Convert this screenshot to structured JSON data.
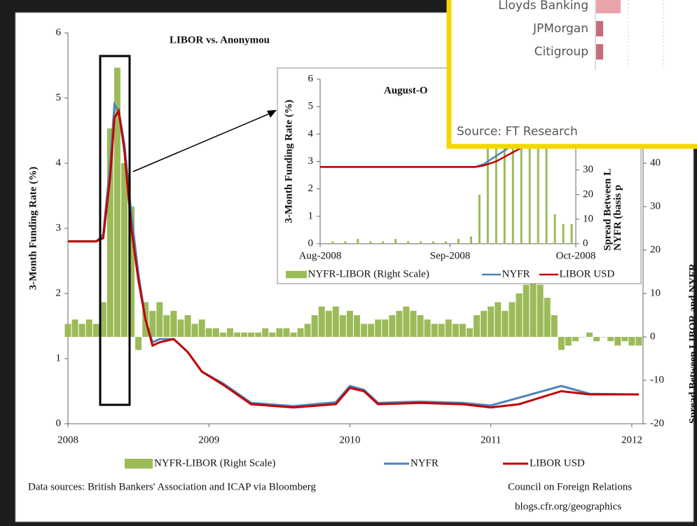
{
  "chart_data": [
    {
      "type": "line",
      "title": "LIBOR vs. Anonymou",
      "ylabel": "3-Month Funding Rate (%)",
      "y2label": "Spread Between LIBOR and NYFR",
      "xlim": [
        2008,
        2012.05
      ],
      "xticks": [
        2008,
        2009,
        2010,
        2011,
        2012
      ],
      "ylim": [
        0,
        6
      ],
      "yticks": [
        0,
        1,
        2,
        3,
        4,
        5,
        6
      ],
      "y2lim": [
        -20,
        70
      ],
      "y2ticks": [
        -20,
        -10,
        0,
        10,
        20,
        30,
        40
      ],
      "series": [
        {
          "name": "NYFR-LIBOR (Right Scale)",
          "kind": "bar",
          "axis": "y2",
          "color": "#9bbb59",
          "x": [
            2008.0,
            2008.05,
            2008.1,
            2008.15,
            2008.2,
            2008.25,
            2008.3,
            2008.35,
            2008.4,
            2008.45,
            2008.5,
            2008.55,
            2008.6,
            2008.65,
            2008.7,
            2008.75,
            2008.8,
            2008.85,
            2008.9,
            2008.95,
            2009.0,
            2009.05,
            2009.1,
            2009.15,
            2009.2,
            2009.25,
            2009.3,
            2009.35,
            2009.4,
            2009.45,
            2009.5,
            2009.55,
            2009.6,
            2009.65,
            2009.7,
            2009.75,
            2009.8,
            2009.85,
            2009.9,
            2009.95,
            2010.0,
            2010.05,
            2010.1,
            2010.15,
            2010.2,
            2010.25,
            2010.3,
            2010.35,
            2010.4,
            2010.45,
            2010.5,
            2010.55,
            2010.6,
            2010.65,
            2010.7,
            2010.75,
            2010.8,
            2010.85,
            2010.9,
            2010.95,
            2011.0,
            2011.05,
            2011.1,
            2011.15,
            2011.2,
            2011.25,
            2011.3,
            2011.35,
            2011.4,
            2011.45,
            2011.5,
            2011.55,
            2011.6,
            2011.65,
            2011.7,
            2011.75,
            2011.8,
            2011.85,
            2011.9,
            2011.95,
            2012.0,
            2012.05
          ],
          "values": [
            3,
            4,
            3,
            4,
            3,
            8,
            48,
            62,
            40,
            30,
            -3,
            8,
            6,
            8,
            5,
            6,
            4,
            5,
            3,
            4,
            2,
            2,
            1,
            2,
            1,
            1,
            1,
            1,
            2,
            1,
            2,
            2,
            1,
            2,
            3,
            5,
            7,
            6,
            7,
            5,
            6,
            5,
            3,
            3,
            4,
            4,
            5,
            6,
            7,
            6,
            5,
            4,
            3,
            3,
            4,
            3,
            3,
            2,
            5,
            6,
            7,
            8,
            6,
            8,
            10,
            12,
            14,
            12,
            9,
            5,
            -3,
            -2,
            -1,
            0,
            1,
            -1,
            0,
            -1,
            -2,
            -1,
            -2,
            -2
          ]
        },
        {
          "name": "NYFR",
          "kind": "line",
          "color": "#4f81bd",
          "x": [
            2008.0,
            2008.2,
            2008.25,
            2008.3,
            2008.33,
            2008.36,
            2008.4,
            2008.45,
            2008.5,
            2008.55,
            2008.6,
            2008.65,
            2008.75,
            2008.85,
            2008.95,
            2009.1,
            2009.3,
            2009.6,
            2009.9,
            2010.0,
            2010.1,
            2010.2,
            2010.5,
            2010.8,
            2011.0,
            2011.2,
            2011.5,
            2011.7,
            2012.05
          ],
          "values": [
            2.8,
            2.8,
            2.9,
            4.0,
            4.9,
            4.8,
            4.3,
            3.2,
            2.3,
            1.6,
            1.25,
            1.3,
            1.3,
            1.1,
            0.8,
            0.62,
            0.32,
            0.27,
            0.33,
            0.58,
            0.52,
            0.32,
            0.34,
            0.32,
            0.28,
            0.4,
            0.58,
            0.46,
            0.45
          ]
        },
        {
          "name": "LIBOR USD",
          "kind": "line",
          "color": "#c00000",
          "x": [
            2008.0,
            2008.2,
            2008.25,
            2008.3,
            2008.33,
            2008.36,
            2008.4,
            2008.45,
            2008.5,
            2008.55,
            2008.6,
            2008.65,
            2008.75,
            2008.85,
            2008.95,
            2009.1,
            2009.3,
            2009.6,
            2009.9,
            2010.0,
            2010.1,
            2010.2,
            2010.5,
            2010.8,
            2011.0,
            2011.2,
            2011.5,
            2011.7,
            2012.05
          ],
          "values": [
            2.8,
            2.8,
            2.85,
            3.8,
            4.7,
            4.8,
            4.2,
            3.0,
            2.2,
            1.6,
            1.2,
            1.25,
            1.3,
            1.1,
            0.8,
            0.6,
            0.3,
            0.25,
            0.3,
            0.55,
            0.5,
            0.3,
            0.32,
            0.3,
            0.25,
            0.3,
            0.5,
            0.45,
            0.45
          ]
        }
      ],
      "sources": "Data sources: British Bankers' Association and ICAP via Bloomberg",
      "credit": "Council on Foreign Relations",
      "url": "blogs.cfr.org/geographics"
    },
    {
      "type": "line",
      "title": "August-O",
      "ylabel": "3-Month Funding Rate (%)",
      "y2label": [
        "Spread Between L",
        "NYFR (basis p"
      ],
      "xlim": [
        0,
        61
      ],
      "xticks": [
        {
          "value": 0,
          "label": "Aug-2008"
        },
        {
          "value": 31,
          "label": "Sep-2008"
        },
        {
          "value": 61,
          "label": "Oct-2008"
        }
      ],
      "ylim": [
        0,
        6
      ],
      "yticks": [
        0,
        1,
        2,
        3,
        4,
        5,
        6
      ],
      "y2lim": [
        0,
        67
      ],
      "y2ticks": [
        0,
        10,
        20,
        30
      ],
      "series": [
        {
          "name": "NYFR-LIBOR (Right Scale)",
          "kind": "bar",
          "axis": "y2",
          "color": "#9bbb59",
          "x": [
            3,
            6,
            9,
            12,
            15,
            18,
            21,
            24,
            27,
            30,
            33,
            36,
            38,
            40,
            42,
            44,
            46,
            48,
            50,
            52,
            54,
            56,
            58,
            60
          ],
          "values": [
            1,
            1,
            2,
            1,
            1,
            2,
            1,
            1,
            1,
            1,
            2,
            3,
            20,
            60,
            60,
            60,
            60,
            60,
            60,
            60,
            60,
            12,
            8,
            8
          ]
        },
        {
          "name": "NYFR",
          "kind": "line",
          "color": "#4f81bd",
          "x": [
            0,
            37,
            39,
            42,
            48,
            61
          ],
          "values": [
            2.8,
            2.8,
            2.9,
            3.2,
            3.8,
            4.3
          ]
        },
        {
          "name": "LIBOR USD",
          "kind": "line",
          "color": "#c00000",
          "x": [
            0,
            37,
            39,
            42,
            48,
            61
          ],
          "values": [
            2.8,
            2.8,
            2.85,
            3.0,
            3.5,
            4.0
          ]
        }
      ]
    },
    {
      "type": "hbar",
      "categories": [
        "Lloyds Banking",
        "JPMorgan",
        "Citigroup"
      ],
      "values": [
        3.5,
        1,
        1
      ],
      "colors": [
        "#e9a3ab",
        "#c76b7b",
        "#c76b7b"
      ],
      "source": "Source: FT Research"
    }
  ]
}
